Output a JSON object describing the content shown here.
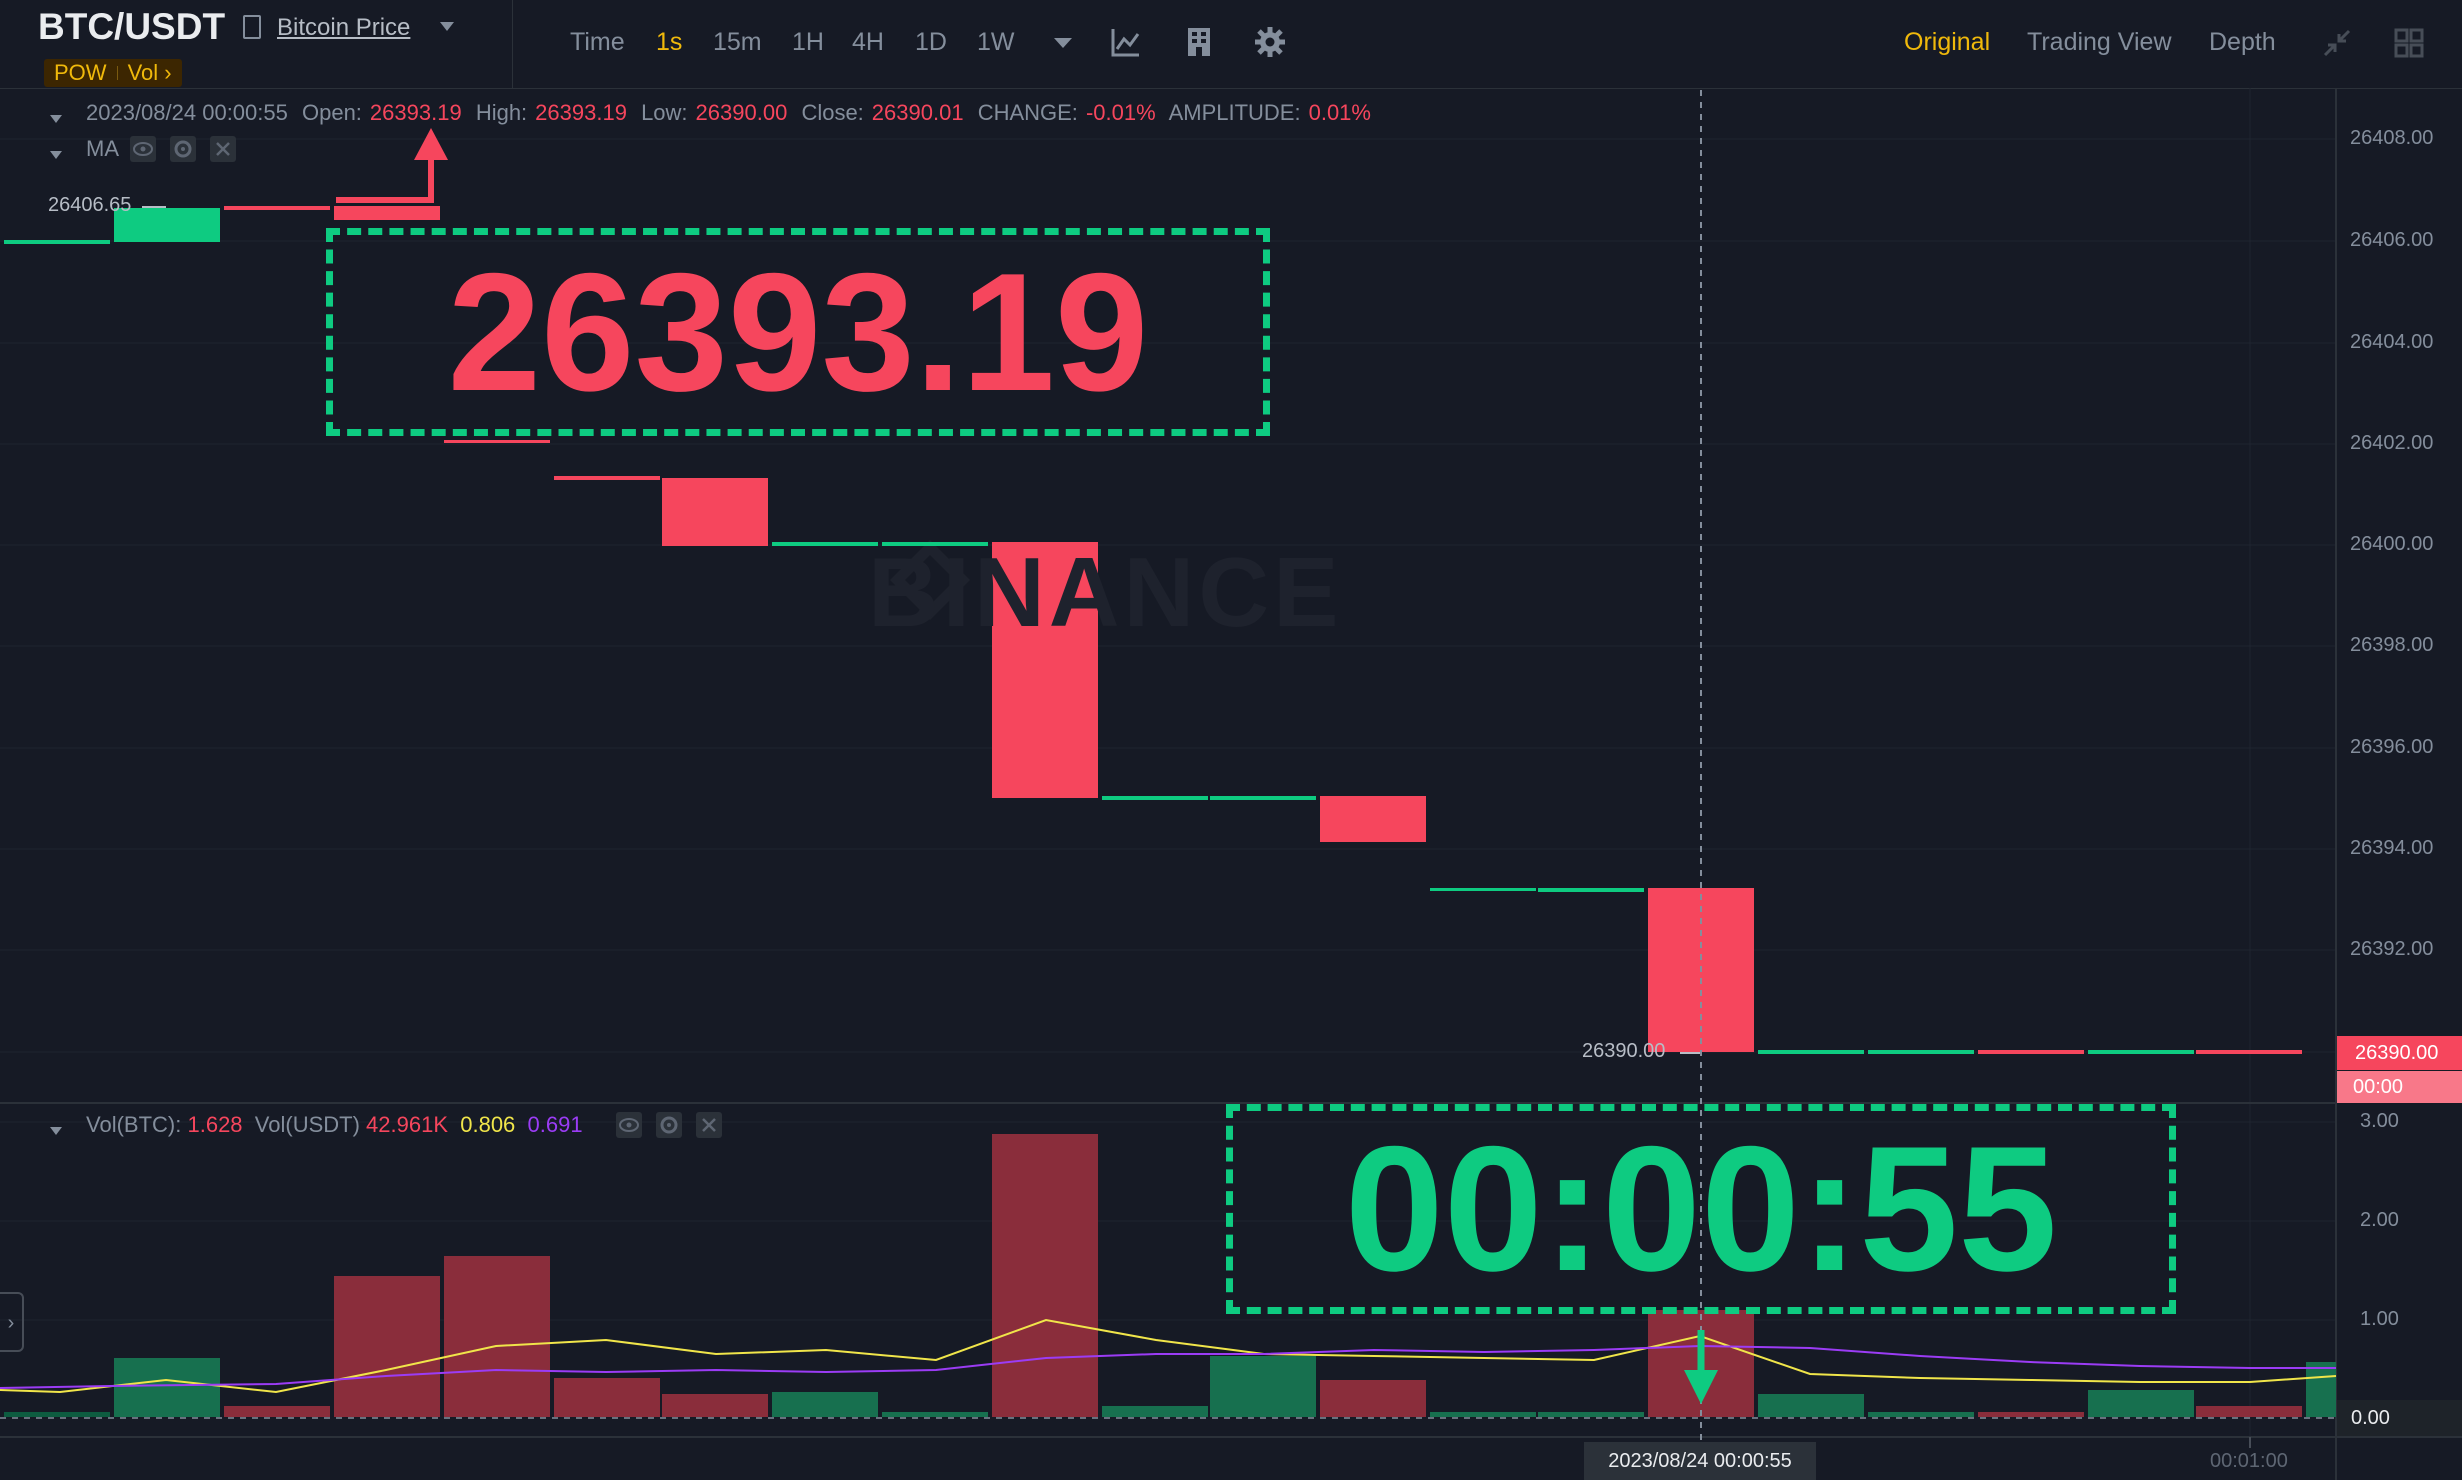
{
  "header": {
    "symbol": "BTC/USDT",
    "subtitle": "Bitcoin Price",
    "tag_pow": "POW",
    "tag_vol": "Vol ›",
    "timeframes": [
      "Time",
      "1s",
      "15m",
      "1H",
      "4H",
      "1D",
      "1W"
    ],
    "active_timeframe": "1s",
    "views": [
      "Original",
      "Trading View",
      "Depth"
    ],
    "active_view": "Original"
  },
  "info": {
    "datetime": "2023/08/24 00:00:55",
    "open_label": "Open:",
    "open": "26393.19",
    "high_label": "High:",
    "high": "26393.19",
    "low_label": "Low:",
    "low": "26390.00",
    "close_label": "Close:",
    "close": "26390.01",
    "change_label": "CHANGE:",
    "change": "-0.01%",
    "amplitude_label": "AMPLITUDE:",
    "amplitude": "0.01%",
    "ma_label": "MA"
  },
  "volume": {
    "btc_label": "Vol(BTC):",
    "btc": "1.628",
    "usdt_label": "Vol(USDT)",
    "usdt": "42.961K",
    "ma1": "0.806",
    "ma2": "0.691"
  },
  "annotations": {
    "big_price": "26393.19",
    "big_time": "00:00:55"
  },
  "chart": {
    "price_axis": [
      "26408.00",
      "26406.00",
      "26404.00",
      "26402.00",
      "26400.00",
      "26398.00",
      "26396.00",
      "26394.00",
      "26392.00"
    ],
    "volume_axis": [
      "3.00",
      "2.00",
      "1.00",
      "0.00"
    ],
    "high_mark": "26406.65",
    "low_mark": "26390.00",
    "current_price": "26390.00",
    "countdown": "00:00",
    "crosshair_time": "2023/08/24 00:00:55",
    "time_tick": "00:01:00",
    "watermark": "BINANCE",
    "colors": {
      "up": "#0ecb81",
      "down": "#f6465d",
      "ma1": "#f0e54a",
      "ma2": "#9b3cf5",
      "accent": "#f0b90b"
    }
  }
}
